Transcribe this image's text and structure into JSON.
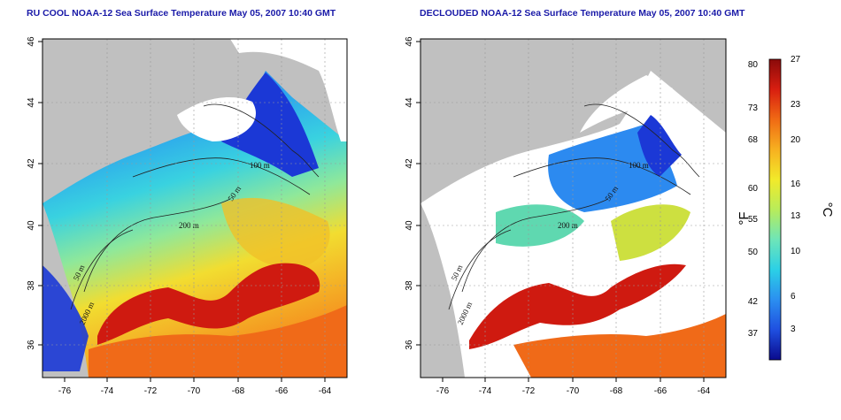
{
  "panels": [
    {
      "title": "RU COOL NOAA-12 Sea Surface Temperature May 05, 2007 10:40 GMT",
      "contour_labels": [
        "100 m",
        "50 m",
        "200 m",
        "50 m",
        "2000 m"
      ]
    },
    {
      "title": "DECLOUDED NOAA-12 Sea Surface Temperature May 05, 2007 10:40 GMT",
      "contour_labels": [
        "100 m",
        "50 m",
        "200 m",
        "50 m",
        "2000 m"
      ]
    }
  ],
  "x_ticks": [
    "-76",
    "-74",
    "-72",
    "-70",
    "-68",
    "-66",
    "-64"
  ],
  "y_ticks": [
    "36",
    "38",
    "40",
    "42",
    "44",
    "46"
  ],
  "colorbar": {
    "fahrenheit_ticks": [
      "80",
      "73",
      "68",
      "60",
      "55",
      "50",
      "42",
      "37"
    ],
    "celsius_ticks": [
      "27",
      "23",
      "20",
      "16",
      "13",
      "10",
      "6",
      "3"
    ],
    "left_unit": "°F",
    "right_unit": "°C",
    "colors": [
      "#0a0a8c",
      "#1f4fe0",
      "#2b8ff0",
      "#2bd0e6",
      "#6ee5b8",
      "#b8ec5a",
      "#f2ea2a",
      "#f7b020",
      "#f06a14",
      "#d81e10",
      "#8a0a0a"
    ]
  },
  "colors": {
    "land": "#c0c0c0",
    "cloud": "#ffffff",
    "title": "#1a1aa8"
  }
}
